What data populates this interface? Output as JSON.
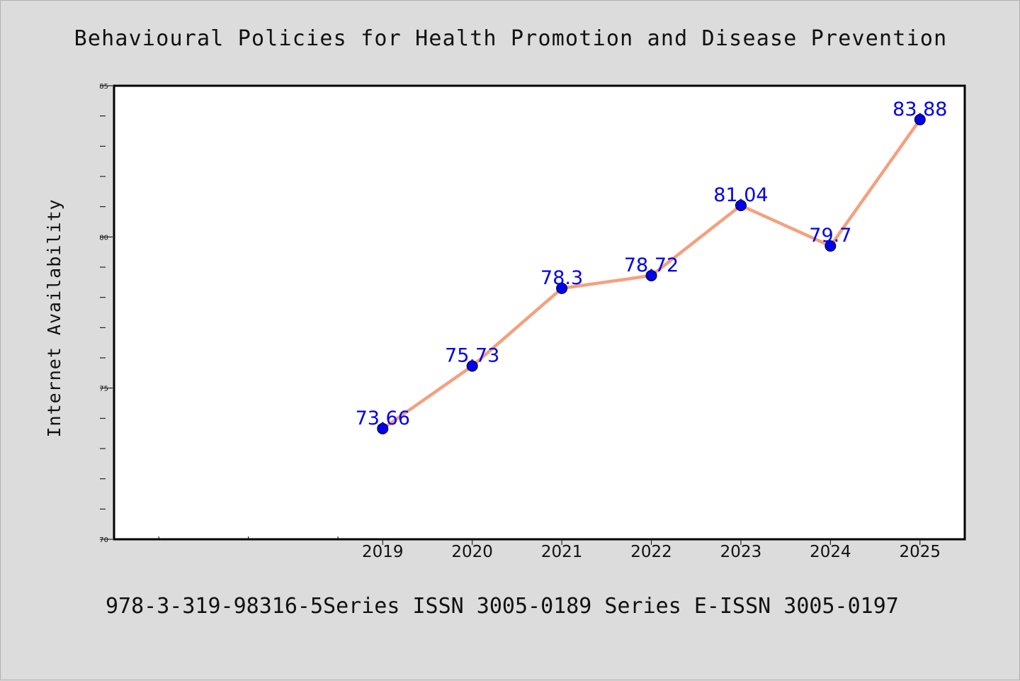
{
  "chart_data": {
    "type": "line",
    "title": "Behavioural Policies for Health Promotion and Disease Prevention",
    "ylabel": "Internet Availability",
    "xlabel": "",
    "footer": "978-3-319-98316-5Series ISSN 3005-0189 Series E-ISSN 3005-0197",
    "x_domain": [
      2016,
      2025.5
    ],
    "ylim": [
      70,
      85
    ],
    "y_major_ticks": [
      70,
      75,
      80,
      85
    ],
    "y_minor_step": 1,
    "x_blank_ticks": [
      2016.5,
      2017.5,
      2018.5
    ],
    "grid": false,
    "legend": "none",
    "x": [
      "2019",
      "2020",
      "2021",
      "2022",
      "2023",
      "2024",
      "2025"
    ],
    "series": [
      {
        "values": [
          73.66,
          75.73,
          78.3,
          78.72,
          81.04,
          79.7,
          83.88
        ],
        "line_color": "#f4a07f",
        "marker_color": "#0000ee",
        "label_color": "#0000ee"
      }
    ]
  }
}
